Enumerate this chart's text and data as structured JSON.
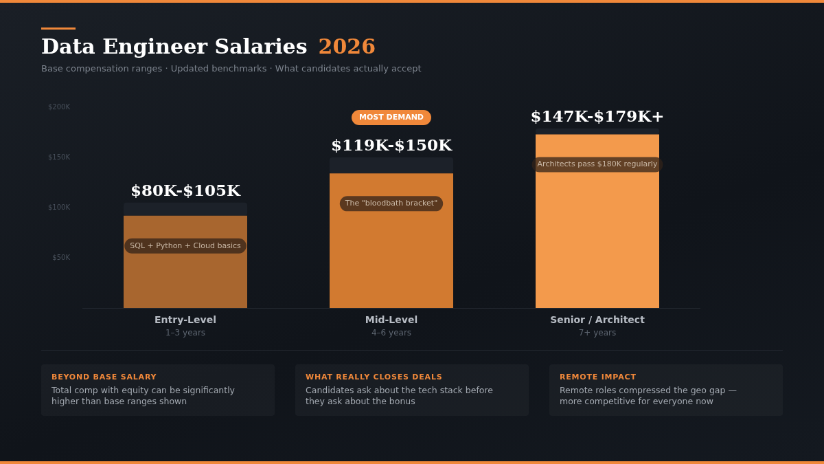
{
  "chart_data": {
    "type": "bar",
    "title": "Data Engineer Salaries 2026",
    "subtitle": "Base compensation ranges · Updated benchmarks · What candidates actually accept",
    "categories": [
      "Entry-Level",
      "Mid-Level",
      "Senior / Architect"
    ],
    "series": [
      {
        "colors": [
          "#a8662f",
          "#d27a30",
          "#f39a4c"
        ],
        "values": [
          92,
          134,
          173
        ]
      },
      {
        "color": "#1c2129",
        "values": [
          13,
          16,
          6
        ]
      }
    ],
    "stacked": true,
    "ylim": [
      0,
      200
    ],
    "yticks": [
      {
        "value": 50,
        "label": "$50K"
      },
      {
        "value": 100,
        "label": "$100K"
      },
      {
        "value": 150,
        "label": "$150K"
      },
      {
        "value": 200,
        "label": "$200K"
      }
    ],
    "grid": false,
    "legend": false,
    "annotations": [
      {
        "text": "$80K-$105K",
        "x": "Entry-Level",
        "y": 105
      },
      {
        "text": "$119K-$150K",
        "x": "Mid-Level",
        "y": 150
      },
      {
        "text": "$147K-$179K+",
        "x": "Senior / Architect",
        "y": 179
      },
      "SQL + Python + Cloud basics",
      "The \"bloodbath bracket\"",
      "Architects pass $180K regularly",
      "1–3 years",
      "4–6 years",
      "7+ years",
      "MOST DEMAND",
      "BEYOND BASE SALARY",
      "Total comp with equity can be significantly higher than base ranges shown",
      "WHAT REALLY CLOSES DEALS",
      "Candidates ask about the tech stack before they ask about the bonus",
      "REMOTE IMPACT",
      "Remote roles compressed the geo gap — more competitive for everyone now"
    ]
  }
}
